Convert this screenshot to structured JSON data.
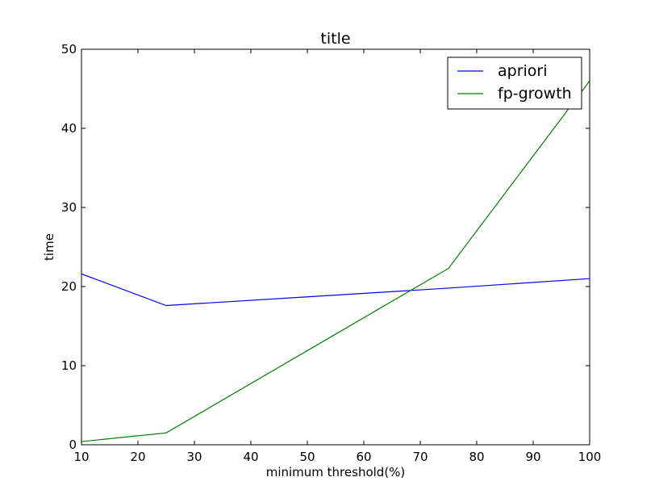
{
  "chart_data": {
    "type": "line",
    "title": "title",
    "xlabel": "minimum threshold(%)",
    "ylabel": "time",
    "xlim": [
      10,
      100
    ],
    "ylim": [
      0,
      50
    ],
    "xticks": [
      10,
      20,
      30,
      40,
      50,
      60,
      70,
      80,
      90,
      100
    ],
    "yticks": [
      0,
      10,
      20,
      30,
      40,
      50
    ],
    "grid": false,
    "legend_position": "top-right",
    "series": [
      {
        "name": "apriori",
        "color": "#0000ff",
        "x": [
          10,
          25,
          50,
          75,
          100
        ],
        "y": [
          21.6,
          17.6,
          18.7,
          19.8,
          21.0
        ]
      },
      {
        "name": "fp-growth",
        "color": "#008000",
        "x": [
          10,
          25,
          75,
          100
        ],
        "y": [
          0.4,
          1.5,
          22.3,
          46.0
        ]
      }
    ]
  }
}
